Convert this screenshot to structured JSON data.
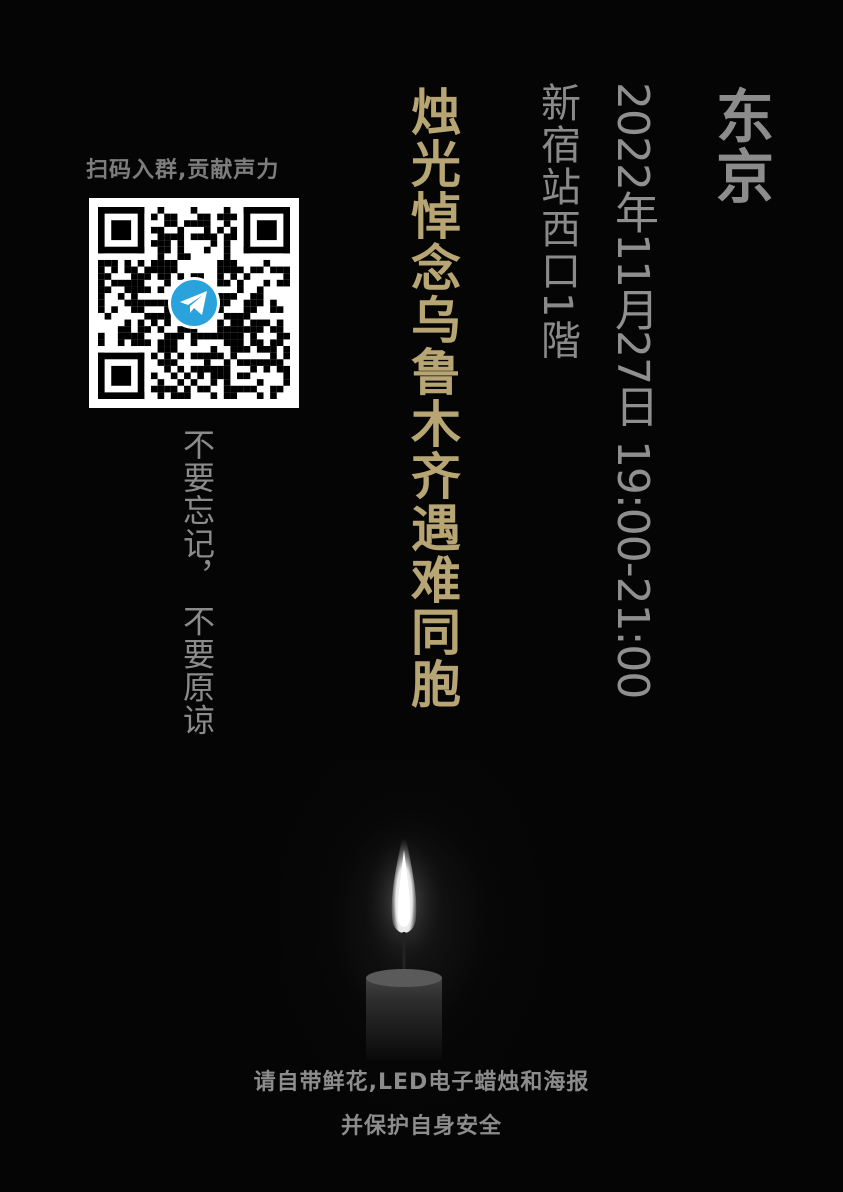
{
  "poster": {
    "city": "东京",
    "datetime": "2022年11月27日 19:00-21:00",
    "venue": "新宿站西口1階",
    "headline": "烛光悼念乌鲁木齐遇难同胞",
    "slogan": "不要忘记， 不要原谅",
    "qr_caption": "扫码入群,贡献声力",
    "qr_icon": "telegram-icon",
    "note_line1": "请自带鲜花,LED电子蜡烛和海报",
    "note_line2": "并保护自身安全"
  },
  "colors": {
    "background": "#050505",
    "headline": "#b7a673",
    "text_gray": "#8c8c8c",
    "telegram_blue": "#2aa2dc"
  }
}
